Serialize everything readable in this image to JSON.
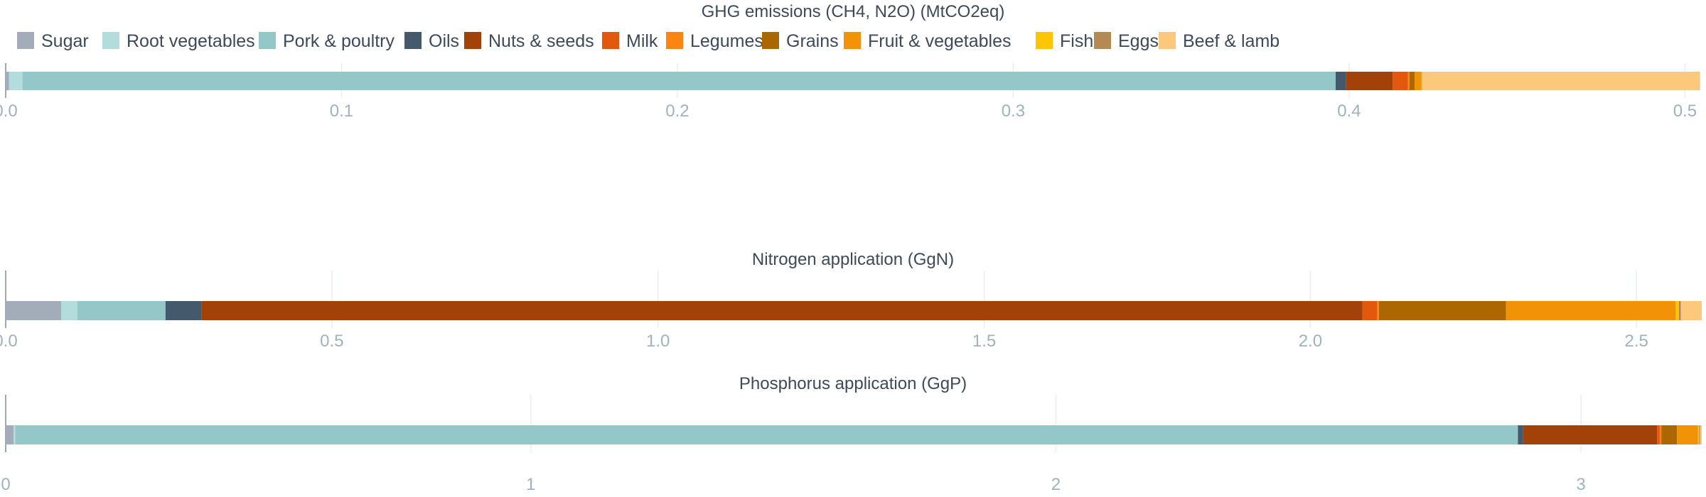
{
  "colors": {
    "Sugar": "#a3acb9",
    "Root vegetables": "#b3dcdc",
    "Pork & poultry": "#94c8c8",
    "Oils": "#44596b",
    "Nuts & seeds": "#a24208",
    "Milk": "#e3580c",
    "Legumes": "#fb8513",
    "Grains": "#ac6701",
    "Fruit & vegetables": "#f29307",
    "Fish": "#fec505",
    "Eggs": "#b48954",
    "Beef & lamb": "#fcc97c"
  },
  "chart_data": [
    {
      "type": "bar",
      "orientation": "horizontal",
      "stacked": true,
      "title": "GHG emissions (CH4, N2O) (MtCO2eq)",
      "xlim": [
        0,
        0.505
      ],
      "ticks": [
        0.0,
        0.1,
        0.2,
        0.3,
        0.4,
        0.5
      ],
      "tick_labels": [
        "0.0",
        "0.1",
        "0.2",
        "0.3",
        "0.4",
        "0.5"
      ],
      "grid": true,
      "legend": "top-left",
      "series": [
        {
          "name": "Sugar",
          "value": 0.001
        },
        {
          "name": "Root vegetables",
          "value": 0.004
        },
        {
          "name": "Pork & poultry",
          "value": 0.391
        },
        {
          "name": "Oils",
          "value": 0.003
        },
        {
          "name": "Nuts & seeds",
          "value": 0.014
        },
        {
          "name": "Milk",
          "value": 0.0045
        },
        {
          "name": "Legumes",
          "value": 0.0005
        },
        {
          "name": "Grains",
          "value": 0.0015
        },
        {
          "name": "Fruit & vegetables",
          "value": 0.002
        },
        {
          "name": "Fish",
          "value": 0.0002
        },
        {
          "name": "Eggs",
          "value": 0.0001
        },
        {
          "name": "Beef & lamb",
          "value": 0.0827
        }
      ]
    },
    {
      "type": "bar",
      "orientation": "horizontal",
      "stacked": true,
      "title": "Nitrogen application (GgN)",
      "xlim": [
        0,
        2.6
      ],
      "ticks": [
        0.0,
        0.5,
        1.0,
        1.5,
        2.0,
        2.5
      ],
      "tick_labels": [
        "0.0",
        "0.5",
        "1.0",
        "1.5",
        "2.0",
        "2.5"
      ],
      "grid": true,
      "series": [
        {
          "name": "Sugar",
          "value": 0.085
        },
        {
          "name": "Root vegetables",
          "value": 0.025
        },
        {
          "name": "Pork & poultry",
          "value": 0.135
        },
        {
          "name": "Oils",
          "value": 0.055
        },
        {
          "name": "Nuts & seeds",
          "value": 1.78
        },
        {
          "name": "Milk",
          "value": 0.022
        },
        {
          "name": "Legumes",
          "value": 0.003
        },
        {
          "name": "Grains",
          "value": 0.195
        },
        {
          "name": "Fruit & vegetables",
          "value": 0.26
        },
        {
          "name": "Fish",
          "value": 0.005
        },
        {
          "name": "Eggs",
          "value": 0.003
        },
        {
          "name": "Beef & lamb",
          "value": 0.032
        }
      ]
    },
    {
      "type": "bar",
      "orientation": "horizontal",
      "stacked": true,
      "title": "Phosphorus application (GgP)",
      "xlim": [
        0,
        3.23
      ],
      "ticks": [
        0,
        1,
        2,
        3
      ],
      "tick_labels": [
        "0",
        "1",
        "2",
        "3"
      ],
      "grid": true,
      "series": [
        {
          "name": "Sugar",
          "value": 0.015
        },
        {
          "name": "Root vegetables",
          "value": 0.003
        },
        {
          "name": "Pork & poultry",
          "value": 2.862
        },
        {
          "name": "Oils",
          "value": 0.01
        },
        {
          "name": "Nuts & seeds",
          "value": 0.255
        },
        {
          "name": "Milk",
          "value": 0.005
        },
        {
          "name": "Legumes",
          "value": 0.003
        },
        {
          "name": "Grains",
          "value": 0.03
        },
        {
          "name": "Fruit & vegetables",
          "value": 0.04
        },
        {
          "name": "Fish",
          "value": 0.002
        },
        {
          "name": "Eggs",
          "value": 0.002
        },
        {
          "name": "Beef & lamb",
          "value": 0.003
        }
      ]
    }
  ]
}
